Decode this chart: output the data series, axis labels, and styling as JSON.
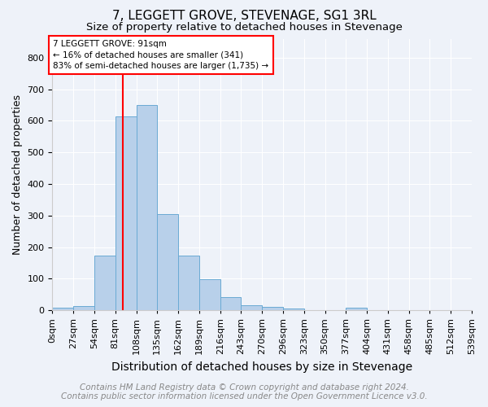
{
  "title": "7, LEGGETT GROVE, STEVENAGE, SG1 3RL",
  "subtitle": "Size of property relative to detached houses in Stevenage",
  "xlabel": "Distribution of detached houses by size in Stevenage",
  "ylabel": "Number of detached properties",
  "footer_line1": "Contains HM Land Registry data © Crown copyright and database right 2024.",
  "footer_line2": "Contains public sector information licensed under the Open Government Licence v3.0.",
  "bin_edges": [
    0,
    27,
    54,
    81,
    108,
    135,
    162,
    189,
    216,
    243,
    270,
    297,
    324,
    351,
    378,
    405,
    432,
    459,
    486,
    513,
    540
  ],
  "bin_labels": [
    "0sqm",
    "27sqm",
    "54sqm",
    "81sqm",
    "108sqm",
    "135sqm",
    "162sqm",
    "189sqm",
    "216sqm",
    "243sqm",
    "270sqm",
    "296sqm",
    "323sqm",
    "350sqm",
    "377sqm",
    "404sqm",
    "431sqm",
    "458sqm",
    "485sqm",
    "512sqm",
    "539sqm"
  ],
  "bar_values": [
    8,
    12,
    172,
    615,
    650,
    305,
    172,
    98,
    42,
    15,
    10,
    5,
    0,
    0,
    7,
    0,
    0,
    0,
    0,
    0
  ],
  "bin_width": 27,
  "bar_color": "#b8d0ea",
  "bar_edgecolor": "#6aaad4",
  "red_line_x": 91,
  "ylim": [
    0,
    860
  ],
  "yticks": [
    0,
    100,
    200,
    300,
    400,
    500,
    600,
    700,
    800
  ],
  "annotation_text": "7 LEGGETT GROVE: 91sqm\n← 16% of detached houses are smaller (341)\n83% of semi-detached houses are larger (1,735) →",
  "annotation_box_edgecolor": "red",
  "annotation_box_facecolor": "white",
  "title_fontsize": 11,
  "subtitle_fontsize": 9.5,
  "xlabel_fontsize": 10,
  "ylabel_fontsize": 9,
  "tick_fontsize": 8,
  "footer_fontsize": 7.5,
  "background_color": "#eef2f9"
}
